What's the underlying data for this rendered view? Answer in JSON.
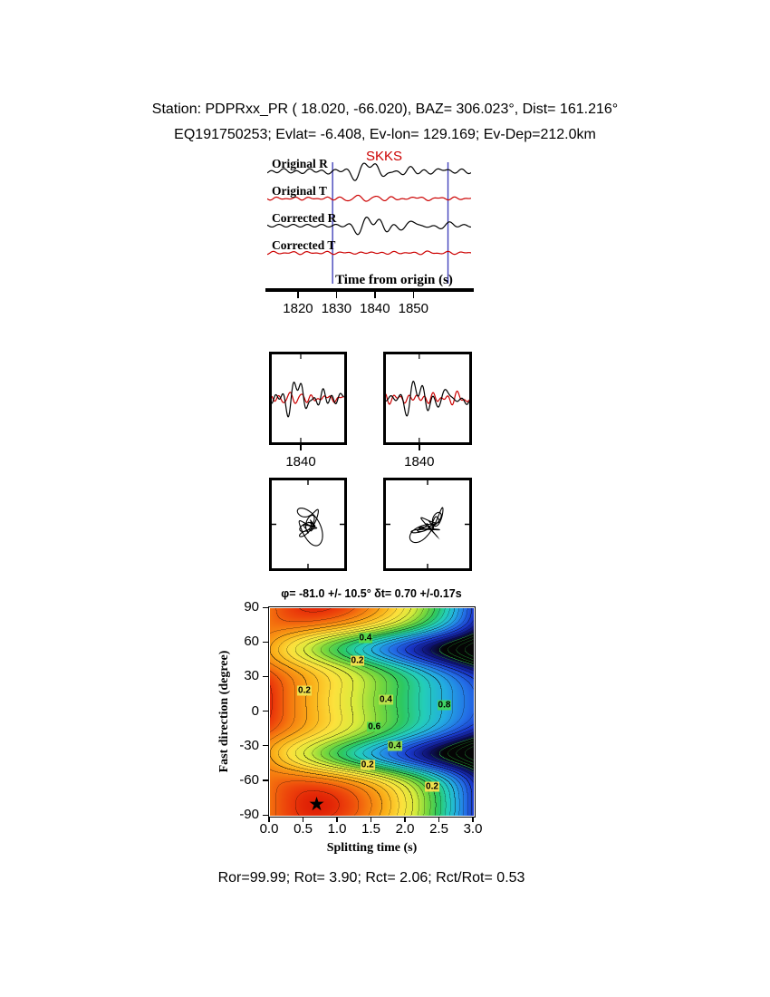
{
  "header": {
    "line1": "Station: PDPRxx_PR (  18.020,  -66.020), BAZ=  306.023°, Dist=  161.216°",
    "line2": "EQ191750253; Evlat=  -6.408, Ev-lon= 129.169; Ev-Dep=212.0km"
  },
  "waveforms": {
    "phase_label": "SKKS",
    "labels": [
      "Original R",
      "Original T",
      "Corrected R",
      "Corrected T"
    ],
    "axis_label": "Time from origin (s)",
    "ticks": [
      "1820",
      "1830",
      "1840",
      "1850"
    ],
    "tick_values": [
      1820,
      1830,
      1840,
      1850
    ],
    "time_range": [
      1812,
      1865
    ],
    "window": [
      1829,
      1859
    ],
    "colors": {
      "radial": "#000000",
      "transverse": "#cc0000",
      "window_line": "#4444bb"
    }
  },
  "zoom_panels": {
    "left_tick": "1840",
    "right_tick": "1840",
    "window": [
      1828,
      1858
    ]
  },
  "contour": {
    "title": "φ= -81.0 +/- 10.5°  δt= 0.70 +/-0.17s",
    "ylabel": "Fast direction (degree)",
    "xlabel": "Splitting time (s)",
    "yticks": [
      "90",
      "60",
      "30",
      "0",
      "-30",
      "-60",
      "-90"
    ],
    "ytick_values": [
      90,
      60,
      30,
      0,
      -30,
      -60,
      -90
    ],
    "xticks": [
      "0.0",
      "0.5",
      "1.0",
      "1.5",
      "2.0",
      "2.5",
      "3.0"
    ],
    "xtick_values": [
      0,
      0.5,
      1,
      1.5,
      2,
      2.5,
      3
    ],
    "x_range": [
      0,
      3
    ],
    "y_range": [
      -90,
      90
    ],
    "best_phi": -81.0,
    "phi_err": 10.5,
    "best_dt": 0.7,
    "dt_err": 0.17,
    "star": {
      "dt": 0.7,
      "phi": -81,
      "glyph": "★"
    },
    "contour_labels": [
      {
        "text": "0.4",
        "dt": 1.42,
        "phi": 63,
        "bg": "#55d84a"
      },
      {
        "text": "0.2",
        "dt": 1.3,
        "phi": 44,
        "bg": "#f0e04e"
      },
      {
        "text": "0.2",
        "dt": 0.52,
        "phi": 18,
        "bg": "#f0e04e"
      },
      {
        "text": "0.4",
        "dt": 1.72,
        "phi": 10,
        "bg": "#b8e04c"
      },
      {
        "text": "0.8",
        "dt": 2.58,
        "phi": 5,
        "bg": "#3fd465"
      },
      {
        "text": "0.6",
        "dt": 1.55,
        "phi": -14,
        "bg": "#57d94c"
      },
      {
        "text": "0.4",
        "dt": 1.85,
        "phi": -30,
        "bg": "#8fdc4e"
      },
      {
        "text": "0.2",
        "dt": 1.45,
        "phi": -47,
        "bg": "#f0e04e"
      },
      {
        "text": "0.2",
        "dt": 2.4,
        "phi": -66,
        "bg": "#f0e04e"
      }
    ]
  },
  "footer": {
    "stats": "Ror=99.99; Rot= 3.90; Rct= 2.06; Rct/Rot= 0.53"
  },
  "chart_data": [
    {
      "type": "line",
      "title": "Waveform panel",
      "xlabel": "Time from origin (s)",
      "x_ticks": [
        1820,
        1830,
        1840,
        1850
      ],
      "x_range": [
        1812,
        1865
      ],
      "analysis_window_s": [
        1829,
        1859
      ],
      "phase_arrival_label": "SKKS",
      "series": [
        {
          "name": "Original R",
          "color": "#000000"
        },
        {
          "name": "Original T",
          "color": "#cc0000"
        },
        {
          "name": "Corrected R",
          "color": "#000000"
        },
        {
          "name": "Corrected T",
          "color": "#cc0000"
        }
      ]
    },
    {
      "type": "line",
      "title": "Windowed waveform overlays",
      "x_ticks": [
        1840
      ],
      "panels": [
        "original R and T overlay",
        "corrected R and T overlay"
      ]
    },
    {
      "type": "scatter",
      "title": "Particle motion",
      "panels": [
        "original: elliptical looping motion",
        "corrected: linearized diagonal motion"
      ]
    },
    {
      "type": "heatmap",
      "title": "φ= -81.0 +/- 10.5°  δt= 0.70 +/-0.17s",
      "xlabel": "Splitting time (s)",
      "ylabel": "Fast direction (degree)",
      "x_range": [
        0,
        3
      ],
      "y_range": [
        -90,
        90
      ],
      "x_ticks": [
        0,
        0.5,
        1,
        1.5,
        2,
        2.5,
        3
      ],
      "y_ticks": [
        90,
        60,
        30,
        0,
        -30,
        -60,
        -90
      ],
      "labeled_contour_levels": [
        0.2,
        0.4,
        0.6,
        0.8
      ],
      "best_fit": {
        "phi_deg": -81.0,
        "phi_err_deg": 10.5,
        "dt_s": 0.7,
        "dt_err_s": 0.17
      },
      "minimum_marker": {
        "dt_s": 0.7,
        "phi_deg": -81
      }
    }
  ]
}
